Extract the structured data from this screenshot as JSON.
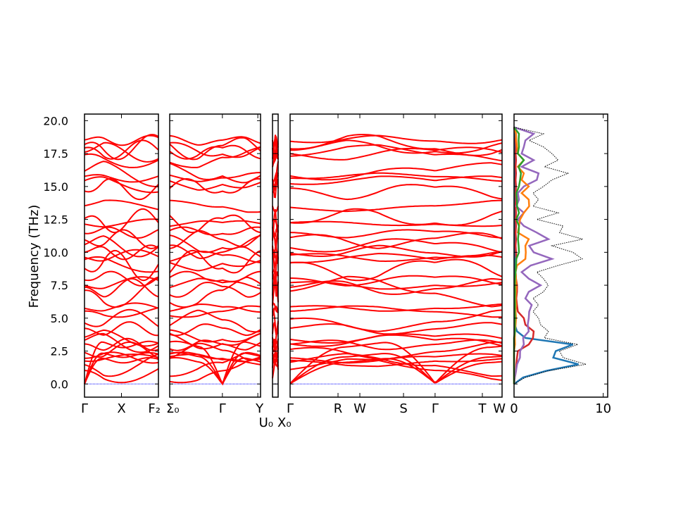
{
  "chart_data": {
    "type": "line",
    "title": "",
    "ylabel": "Frequency (THz)",
    "ylim": [
      -1.0,
      20.5
    ],
    "yticks": [
      "0.0",
      "2.5",
      "5.0",
      "7.5",
      "10.0",
      "12.5",
      "15.0",
      "17.5",
      "20.0"
    ],
    "ytick_values": [
      0,
      2.5,
      5,
      7.5,
      10,
      12.5,
      15,
      17.5,
      20
    ],
    "band_color": "#ff0000",
    "zero_line_color": "#0000ff",
    "band_segments": [
      {
        "labels": [
          "Γ",
          "X",
          "F₂"
        ],
        "label_positions": [
          0,
          0.5,
          1
        ]
      },
      {
        "labels": [
          "Σ₀",
          "Γ",
          "Y"
        ],
        "label_positions": [
          0,
          0.58,
          0.97
        ]
      },
      {
        "labels": [
          "U₀",
          "X₀"
        ],
        "label_positions": [
          0,
          1
        ]
      },
      {
        "labels": [
          "Γ",
          "R",
          "W",
          "S",
          "Γ",
          "T",
          "W"
        ],
        "label_positions": [
          0,
          0.226,
          0.329,
          0.535,
          0.684,
          0.907,
          1
        ]
      }
    ],
    "gamma_frequencies": [
      0,
      0,
      0,
      1.0,
      1.5,
      1.8,
      2.0,
      2.5,
      3.0,
      3.2,
      3.5,
      4.2,
      4.8,
      5.5,
      5.8,
      7.0,
      7.3,
      7.6,
      8.0,
      9.0,
      9.3,
      9.7,
      10.0,
      10.5,
      11.0,
      11.5,
      12.2,
      12.4,
      13.5,
      14.8,
      15.3,
      15.7,
      16.0,
      17.3,
      17.6,
      17.8,
      18.0,
      18.5
    ],
    "dos": {
      "xlim": [
        0,
        10.5
      ],
      "xticks": [
        "0",
        "10"
      ],
      "xtick_values": [
        0,
        10
      ],
      "frequency": [
        0,
        0.5,
        1,
        1.5,
        2,
        2.5,
        3,
        3.5,
        4,
        4.5,
        5,
        5.5,
        6,
        6.5,
        7,
        7.5,
        8,
        8.5,
        9,
        9.5,
        10,
        10.5,
        11,
        11.5,
        12,
        12.5,
        13,
        13.5,
        14,
        14.5,
        15,
        15.5,
        16,
        16.5,
        17,
        17.5,
        18,
        18.5,
        19,
        19.5
      ],
      "series": [
        {
          "name": "total",
          "color": "#000000",
          "style": "dotted",
          "values": [
            0,
            1.5,
            3.5,
            9.5,
            5,
            6,
            6.5,
            4,
            3.5,
            3.5,
            2.5,
            2.5,
            2.5,
            2.5,
            3,
            4.5,
            3,
            3,
            4.5,
            9,
            6,
            5,
            7,
            6,
            5,
            3,
            4.5,
            2.5,
            2.5,
            2.5,
            3,
            5,
            5.5,
            4,
            4.5,
            5,
            3,
            2,
            3,
            0
          ]
        },
        {
          "name": "partial-1",
          "color": "#1f77b4",
          "style": "solid",
          "values": [
            0,
            1.2,
            3.3,
            8.5,
            4,
            5.5,
            6,
            1.5,
            0.3,
            0.1,
            0.1,
            0.1,
            0.1,
            0.1,
            0.1,
            0.1,
            0.1,
            0.1,
            0.1,
            0.1,
            0.1,
            0.1,
            0.1,
            0.1,
            0.1,
            0.1,
            0.1,
            0.1,
            0.1,
            0.1,
            0.1,
            0.1,
            0.1,
            0.1,
            0.1,
            0.1,
            0.1,
            0.1,
            0.1,
            0
          ]
        },
        {
          "name": "partial-2",
          "color": "#d62728",
          "style": "solid",
          "values": [
            0,
            0.1,
            0.2,
            0.3,
            0.3,
            0.5,
            1.5,
            2.5,
            2,
            1.5,
            1,
            0.5,
            0.3,
            0.3,
            0.3,
            0.4,
            0.2,
            0.2,
            0.2,
            0.3,
            0.2,
            0.2,
            0.2,
            0.2,
            0.2,
            0.2,
            0.2,
            0.2,
            0.2,
            0.2,
            0.2,
            0.2,
            0.2,
            0.2,
            0.2,
            0.2,
            0.2,
            0.2,
            0.2,
            0
          ]
        },
        {
          "name": "partial-3",
          "color": "#9467bd",
          "style": "solid",
          "values": [
            0,
            0.1,
            0.2,
            0.4,
            0.6,
            0.8,
            1,
            1.2,
            1.5,
            1.8,
            1.5,
            2,
            1.8,
            1.5,
            1.5,
            3.5,
            1.5,
            1,
            1.7,
            5,
            2,
            2,
            3.5,
            3,
            1,
            0.5,
            1,
            0.3,
            0.5,
            0.5,
            1,
            3,
            2.5,
            1,
            2,
            1,
            1,
            1.5,
            2,
            0
          ]
        },
        {
          "name": "partial-4",
          "color": "#ff7f0e",
          "style": "solid",
          "values": [
            0,
            0,
            0,
            0,
            0,
            0,
            0.1,
            0.1,
            0.1,
            0.2,
            0.2,
            0.2,
            0.2,
            0.2,
            0.2,
            0.3,
            0.2,
            0.2,
            0.3,
            1.5,
            1.2,
            1.5,
            1.5,
            0.5,
            0.5,
            0.8,
            1,
            2,
            1.5,
            1,
            1.5,
            1,
            1,
            0.5,
            1,
            0.5,
            0.3,
            0.3,
            0.2,
            0
          ]
        },
        {
          "name": "partial-5",
          "color": "#2ca02c",
          "style": "solid",
          "values": [
            0,
            0,
            0,
            0,
            0,
            0,
            0,
            0,
            0.1,
            0.1,
            0.1,
            0.1,
            0.1,
            0.1,
            0.1,
            0.1,
            0.1,
            0.2,
            0.2,
            0.3,
            0.5,
            0.6,
            0.4,
            0.6,
            0.5,
            0.3,
            0.5,
            0.4,
            0.3,
            0.3,
            0.5,
            0.8,
            0.7,
            0.6,
            1,
            0.5,
            0.5,
            0.6,
            0.5,
            0
          ]
        }
      ]
    }
  }
}
